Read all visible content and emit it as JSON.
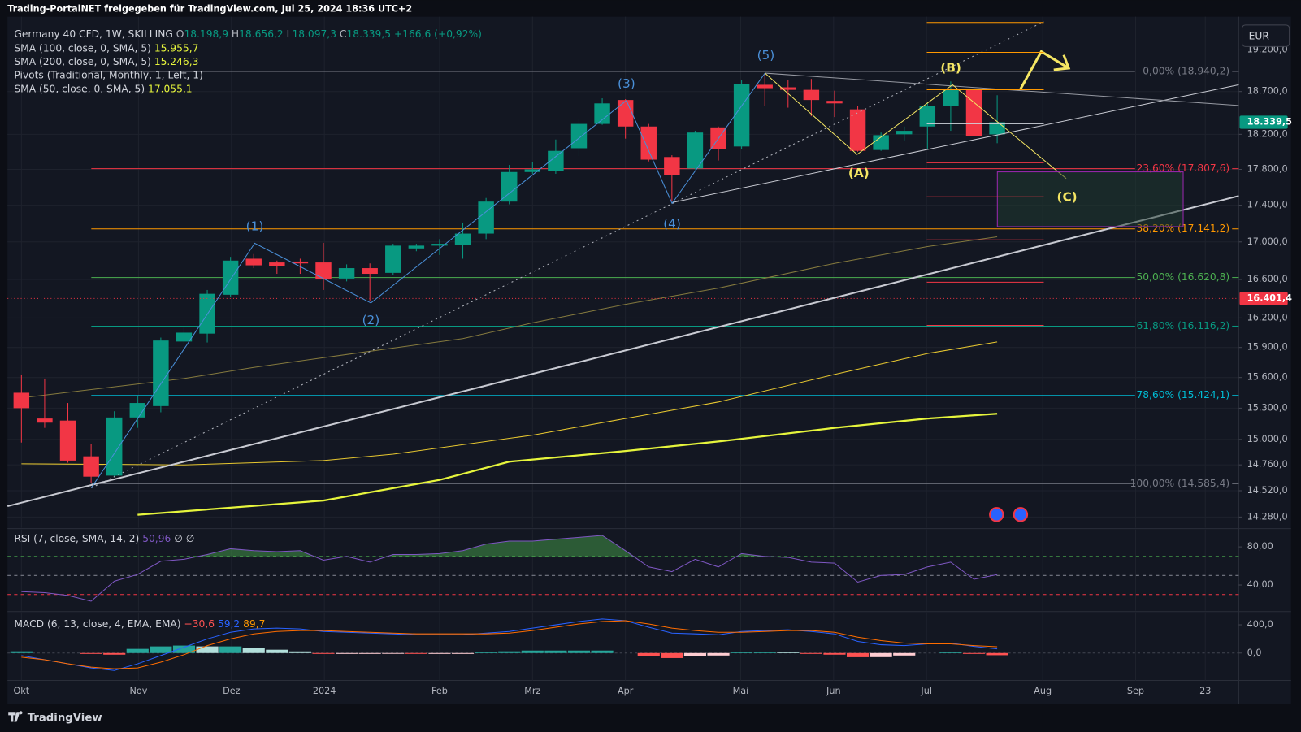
{
  "header": {
    "text": "Trading-PortalNET freigegeben für TradingView.com, Jul 25, 2024 18:36 UTC+2"
  },
  "footer": {
    "brand": "TradingView"
  },
  "chart_data": [
    {
      "type": "candlestick",
      "title": "Germany 40 CFD, 1W, SKILLING",
      "ohlc": [
        {
          "key": "O",
          "label": "18.198,9"
        },
        {
          "key": "H",
          "label": "18.656,2"
        },
        {
          "key": "L",
          "label": "18.097,3"
        },
        {
          "key": "C",
          "label": "18.339,5"
        }
      ],
      "change_label": "+166,6 (+0,92%)",
      "currency": "EUR",
      "pivots_label": "Pivots (Traditional, Monthly, 1, Left, 1)",
      "open": [
        15450,
        15200,
        15180,
        14840,
        14660,
        15210,
        15320,
        15960,
        16040,
        16440,
        16820,
        16780,
        16790,
        16780,
        16610,
        16720,
        16670,
        16930,
        16960,
        16970,
        17090,
        17440,
        17770,
        17780,
        18040,
        18320,
        18600,
        18290,
        17940,
        17810,
        18280,
        18060,
        18780,
        18750,
        18720,
        18590,
        18490,
        18020,
        18200,
        18290,
        18530,
        18730,
        18198.9
      ],
      "high": [
        15630,
        15590,
        15350,
        14955,
        15270,
        15420,
        16000,
        16100,
        16490,
        16840,
        16870,
        16800,
        16820,
        16990,
        16760,
        16770,
        16980,
        16980,
        17030,
        17210,
        17480,
        17850,
        17880,
        18140,
        18380,
        18620,
        18610,
        18320,
        17960,
        18240,
        18290,
        18840,
        18920,
        18840,
        18850,
        18710,
        18530,
        18220,
        18290,
        18570,
        18820,
        18750,
        18656.2
      ],
      "low": [
        14970,
        15110,
        14780,
        14590,
        14650,
        15110,
        15260,
        15930,
        15950,
        16420,
        16720,
        16660,
        16660,
        16490,
        16580,
        16380,
        16650,
        16900,
        16860,
        16820,
        17030,
        17410,
        17750,
        17750,
        17950,
        18310,
        18150,
        17890,
        17450,
        17800,
        17900,
        18030,
        18530,
        18510,
        18410,
        18400,
        18000,
        18010,
        18130,
        18030,
        18240,
        18150,
        18097.3
      ],
      "close": [
        15300,
        15160,
        14800,
        14650,
        15210,
        15350,
        15970,
        16050,
        16450,
        16800,
        16750,
        16740,
        16770,
        16600,
        16720,
        16660,
        16960,
        16960,
        16980,
        17090,
        17440,
        17770,
        17800,
        18010,
        18320,
        18560,
        18290,
        17910,
        17740,
        18220,
        18030,
        18790,
        18740,
        18720,
        18600,
        18560,
        18010,
        18190,
        18240,
        18530,
        18730,
        18180,
        18339.5
      ],
      "colors": {
        "up": "#089981",
        "down": "#f23645"
      },
      "xlim": [
        -0.6,
        52.4
      ],
      "xticks": [
        {
          "value": 0,
          "label": "Okt"
        },
        {
          "value": 5.04,
          "label": "Nov"
        },
        {
          "value": 9.04,
          "label": "Dez"
        },
        {
          "value": 13.04,
          "label": "2024"
        },
        {
          "value": 18,
          "label": "Feb"
        },
        {
          "value": 22,
          "label": "Mrz"
        },
        {
          "value": 26,
          "label": "Apr"
        },
        {
          "value": 30.96,
          "label": "Mai"
        },
        {
          "value": 34.96,
          "label": "Jun"
        },
        {
          "value": 38.96,
          "label": "Jul"
        },
        {
          "value": 43.96,
          "label": "Aug"
        },
        {
          "value": 47.96,
          "label": "Sep"
        },
        {
          "value": 50.96,
          "label": "23"
        }
      ],
      "ylim": [
        14183,
        19608
      ],
      "ylog": true,
      "grid": true,
      "yticks": [
        {
          "value": 19200,
          "label": "19.200,0"
        },
        {
          "value": 18700,
          "label": "18.700,0"
        },
        {
          "value": 18200,
          "label": "18.200,0"
        },
        {
          "value": 17800,
          "label": "17.800,0"
        },
        {
          "value": 17400,
          "label": "17.400,0"
        },
        {
          "value": 17000,
          "label": "17.000,0"
        },
        {
          "value": 16600,
          "label": "16.600,0"
        },
        {
          "value": 16200,
          "label": "16.200,0"
        },
        {
          "value": 15900,
          "label": "15.900,0"
        },
        {
          "value": 15600,
          "label": "15.600,0"
        },
        {
          "value": 15300,
          "label": "15.300,0"
        },
        {
          "value": 15000,
          "label": "15.000,0"
        },
        {
          "value": 14760,
          "label": "14.760,0"
        },
        {
          "value": 14520,
          "label": "14.520,0"
        },
        {
          "value": 14280,
          "label": "14.280,0"
        }
      ],
      "overlays": [
        {
          "name": "SMA (100, close, 0, SMA, 5)",
          "value_label": "15.955,7",
          "color": "#e8c830",
          "width": 1,
          "x": [
            0,
            7,
            13,
            16,
            22,
            26,
            30,
            35,
            39,
            42
          ],
          "values": [
            14770,
            14760,
            14800,
            14860,
            15040,
            15200,
            15360,
            15630,
            15840,
            15955.7
          ]
        },
        {
          "name": "SMA (200, close, 0, SMA, 5)",
          "value_label": "15.246,3",
          "color": "#e6f53c",
          "width": 2.2,
          "x": [
            5,
            13,
            18,
            21,
            26,
            30,
            35,
            39,
            42
          ],
          "values": [
            14300,
            14430,
            14620,
            14790,
            14890,
            14980,
            15110,
            15200,
            15246.3
          ]
        },
        {
          "name": "SMA (50, close, 0, SMA, 5)",
          "value_label": "17.055,1",
          "color": "#857a3e",
          "width": 1,
          "x": [
            0,
            7,
            10,
            14,
            19,
            22,
            26,
            30,
            35,
            39,
            42
          ],
          "values": [
            15400,
            15590,
            15700,
            15830,
            15990,
            16150,
            16340,
            16510,
            16770,
            16950,
            17055.1
          ]
        }
      ],
      "fib": [
        {
          "value": 18940.2,
          "label": "0,00% (18.940,2)",
          "color": "#787b86"
        },
        {
          "value": 17807.6,
          "label": "23,60% (17.807,6)",
          "color": "#f23645"
        },
        {
          "value": 17141.2,
          "label": "38,20% (17.141,2)",
          "color": "#ff9800"
        },
        {
          "value": 16620.8,
          "label": "50,00% (16.620,8)",
          "color": "#4caf50"
        },
        {
          "value": 16116.2,
          "label": "61,80% (16.116,2)",
          "color": "#089981"
        },
        {
          "value": 15424.1,
          "label": "78,60% (15.424,1)",
          "color": "#00bcd4"
        },
        {
          "value": 14585.4,
          "label": "100,00% (14.585,4)",
          "color": "#787b86"
        }
      ],
      "price_badges": [
        {
          "value": 18339.5,
          "label": "18.339,5",
          "color": "#089981",
          "line": false
        },
        {
          "value": 16401.4,
          "label": "16.401,4",
          "color": "#f23645",
          "line": true
        }
      ],
      "annotations": [
        "(1)",
        "(2)",
        "(3)",
        "(4)",
        "(5)",
        "(A)",
        "(B)",
        "(C)"
      ]
    },
    {
      "type": "line",
      "title": "RSI (7, close, SMA, 14, 2)",
      "value_label": "50,96",
      "extra_label": "∅ ∅",
      "color": "#7e57c2",
      "fill": "#4caf50",
      "values": [
        33,
        32,
        29,
        23,
        44,
        51,
        65,
        67,
        72,
        78,
        76,
        75,
        76,
        66,
        70,
        64,
        72,
        72,
        73,
        76,
        83,
        86,
        86,
        88,
        90,
        92,
        76,
        59,
        54,
        67,
        59,
        73,
        70,
        69,
        64,
        63,
        43,
        50,
        51,
        59,
        64,
        46,
        50.96
      ],
      "ylim": [
        13,
        98.3
      ],
      "yticks": [
        {
          "value": 80,
          "label": "80,00"
        },
        {
          "value": 40,
          "label": "40,00"
        }
      ],
      "levels": [
        {
          "value": 70,
          "color": "#4caf50"
        },
        {
          "value": 50,
          "color": "#787b86"
        },
        {
          "value": 30,
          "color": "#f23645"
        }
      ]
    },
    {
      "type": "macd",
      "title": "MACD (6, 13, close, 4, EMA, EMA)",
      "ylim": [
        -388,
        576
      ],
      "yticks": [
        {
          "value": 400,
          "label": "400,0"
        },
        {
          "value": 0,
          "label": "0,0"
        }
      ],
      "histogram": {
        "value_label": "−30,6",
        "colors": [
          "#26a69a",
          "#b2dfdb",
          "#ffcdd2",
          "#ff5252"
        ],
        "values": [
          24,
          0,
          0,
          -12,
          -23,
          59,
          94,
          106,
          94,
          94,
          70,
          47,
          23,
          -12,
          -12,
          -12,
          -11,
          -12,
          -12,
          -12,
          11,
          24,
          35,
          35,
          35,
          35,
          0,
          -47,
          -71,
          -47,
          -35,
          12,
          12,
          11,
          -12,
          -23,
          -59,
          -58,
          -35,
          0,
          12,
          -12,
          -30.6
        ]
      },
      "series": [
        {
          "value_label": "59,2",
          "color": "#2962ff",
          "values": [
            -35,
            -94,
            -153,
            -212,
            -247,
            -153,
            -35,
            82,
            200,
            294,
            341,
            353,
            341,
            306,
            294,
            282,
            271,
            259,
            259,
            259,
            282,
            306,
            353,
            400,
            447,
            482,
            459,
            365,
            282,
            271,
            259,
            306,
            318,
            329,
            306,
            271,
            165,
            118,
            106,
            129,
            141,
            94,
            59.2
          ]
        },
        {
          "value_label": "89,7",
          "color": "#ff6d00",
          "values": [
            -59,
            -94,
            -153,
            -200,
            -224,
            -212,
            -129,
            -24,
            106,
            200,
            271,
            306,
            318,
            318,
            306,
            294,
            282,
            271,
            271,
            271,
            271,
            282,
            318,
            365,
            412,
            447,
            459,
            412,
            353,
            318,
            294,
            294,
            306,
            318,
            318,
            294,
            224,
            176,
            141,
            129,
            129,
            106,
            89.7
          ]
        }
      ]
    }
  ]
}
